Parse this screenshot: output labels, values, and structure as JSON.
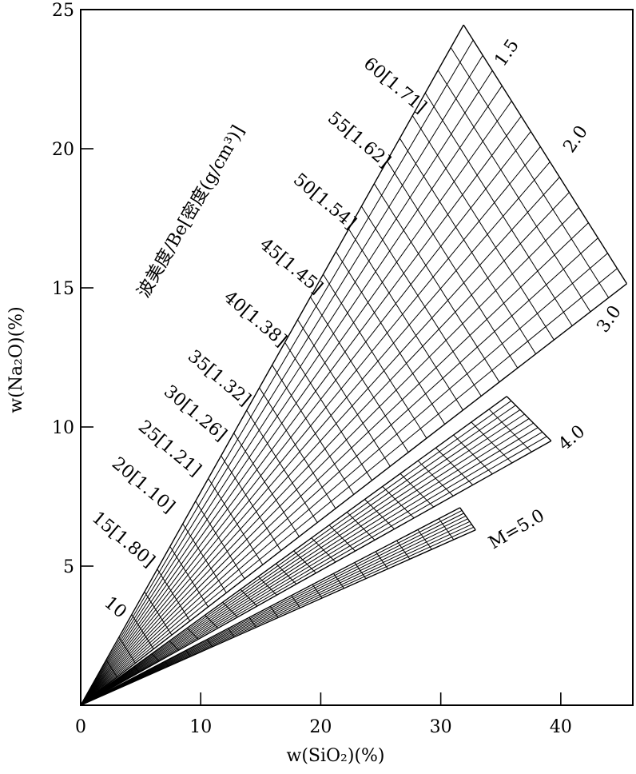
{
  "chart_data": {
    "type": "line",
    "title": "",
    "xlabel": "w(SiO₂)(%)",
    "ylabel": "w(Na₂O)(%)",
    "xlim": [
      0,
      46
    ],
    "ylim": [
      0,
      25
    ],
    "x_ticks": [
      "0",
      "10",
      "20",
      "30",
      "40"
    ],
    "y_ticks": [
      "5",
      "10",
      "15",
      "20",
      "25"
    ],
    "grid": false,
    "density_axis_title": "波美度/Be[密度(g/cm³)]",
    "degree_labels": [
      "10",
      "15[1.80]",
      "20[1.10]",
      "25[1.21]",
      "30[1.26]",
      "35[1.32]",
      "40[1.38]",
      "45[1.45]",
      "50[1.54]",
      "55[1.62]",
      "60[1.71]"
    ],
    "modulus_labels": [
      "1.5",
      "2.0",
      "3.0",
      "4.0",
      "M=5.0"
    ],
    "fans": [
      {
        "name": "",
        "modulus_from": 1.5,
        "modulus_to": 3.0,
        "outer_edge": [
          [
            31.9,
            24.45
          ],
          [
            45.5,
            15.15
          ]
        ],
        "modulus_lines": 17,
        "baume_lines": 30
      },
      {
        "name": "",
        "modulus_from": 3.0,
        "modulus_to": 4.0,
        "outer_edge": [
          [
            35.5,
            11.1
          ],
          [
            39.2,
            9.5
          ]
        ],
        "modulus_lines": 10,
        "baume_lines": 24
      },
      {
        "name": "",
        "modulus_from": 4.0,
        "modulus_to": 5.0,
        "outer_edge": [
          [
            31.6,
            7.1
          ],
          [
            32.9,
            6.3
          ]
        ],
        "modulus_lines": 8,
        "baume_lines": 18
      }
    ]
  }
}
